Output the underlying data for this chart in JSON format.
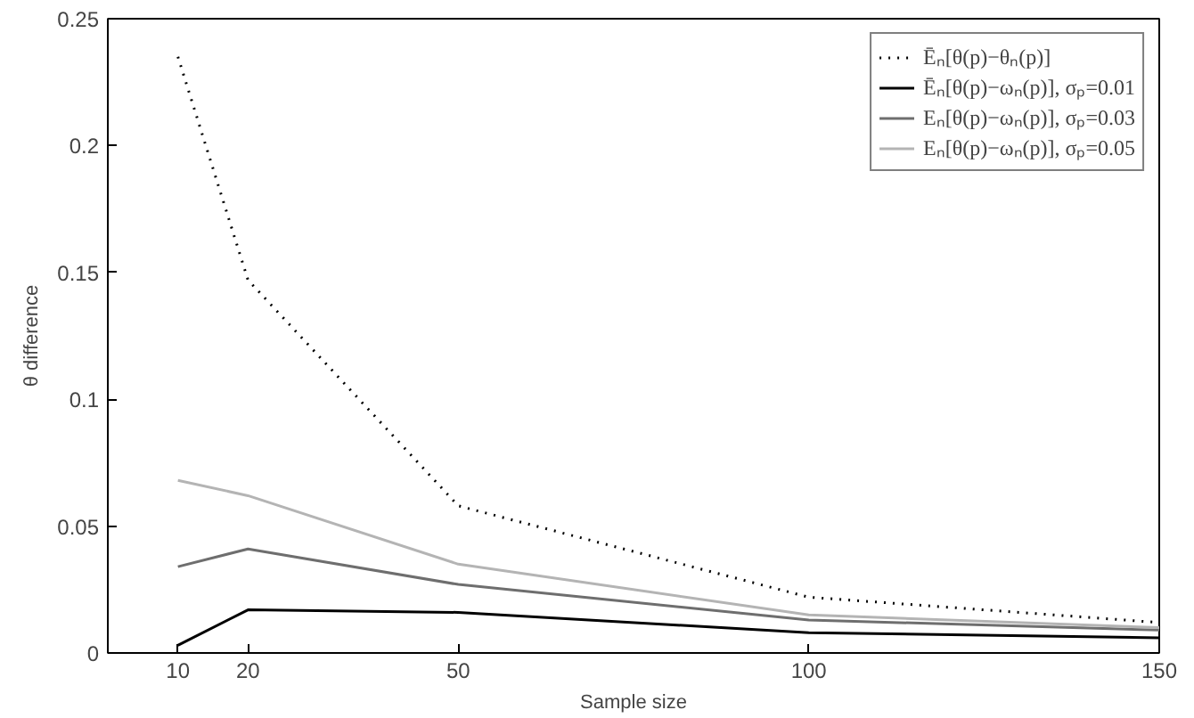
{
  "chart_data": {
    "type": "line",
    "xlabel": "Sample size",
    "ylabel": "θ difference",
    "x": [
      10,
      20,
      50,
      100,
      150
    ],
    "series": [
      {
        "name": "Ēₙ[θ(p)−θₙ(p)]",
        "color": "#000000",
        "line_style": "dotted",
        "values": [
          0.235,
          0.147,
          0.058,
          0.022,
          0.012
        ]
      },
      {
        "name": "Ēₙ[θ(p)−ωₙ(p)], σₚ=0.01",
        "color": "#000000",
        "line_style": "solid",
        "values": [
          0.003,
          0.017,
          0.016,
          0.008,
          0.006
        ]
      },
      {
        "name": "Eₙ[θ(p)−ωₙ(p)], σₚ=0.03",
        "color": "#6e6e6e",
        "line_style": "solid",
        "values": [
          0.034,
          0.041,
          0.027,
          0.013,
          0.009
        ]
      },
      {
        "name": "Eₙ[θ(p)−ωₙ(p)], σₚ=0.05",
        "color": "#b4b4b4",
        "line_style": "solid",
        "values": [
          0.068,
          0.062,
          0.035,
          0.015,
          0.01
        ]
      }
    ],
    "xlim": [
      0,
      150
    ],
    "ylim": [
      0,
      0.25
    ],
    "xticks": [
      10,
      20,
      50,
      100,
      150
    ],
    "yticks": [
      0,
      0.05,
      0.1,
      0.15,
      0.2,
      0.25
    ],
    "grid": false,
    "legend": "top right"
  }
}
